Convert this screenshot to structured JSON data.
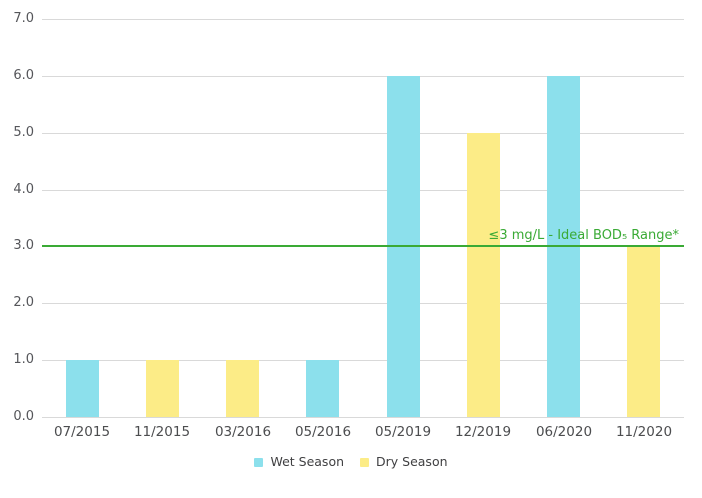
{
  "chart_data": {
    "type": "bar",
    "categories": [
      "07/2015",
      "11/2015",
      "03/2016",
      "05/2016",
      "05/2019",
      "12/2019",
      "06/2020",
      "11/2020"
    ],
    "series": [
      {
        "name": "Wet Season",
        "color": "#8ce0ec",
        "values": [
          1,
          null,
          null,
          1,
          6,
          null,
          6,
          null
        ]
      },
      {
        "name": "Dry Season",
        "color": "#fcec87",
        "values": [
          null,
          1,
          1,
          null,
          null,
          5,
          null,
          3
        ]
      }
    ],
    "ylim": [
      0,
      7
    ],
    "yticks": [
      0,
      1,
      2,
      3,
      4,
      5,
      6,
      7
    ],
    "ytick_labels": [
      "0.0",
      "1.0",
      "2.0",
      "3.0",
      "4.0",
      "5.0",
      "6.0",
      "7.0"
    ],
    "grid": "horizontal",
    "legend_position": "bottom-center",
    "reference_line": {
      "value": 3,
      "label": "≤3 mg/L - Ideal BOD₅ Range*",
      "color": "#3aaa35"
    },
    "colors": {
      "gridline": "#d9d9d9",
      "axis_text": "#55565a",
      "legend_text": "#404042",
      "background": "#ffffff"
    }
  }
}
